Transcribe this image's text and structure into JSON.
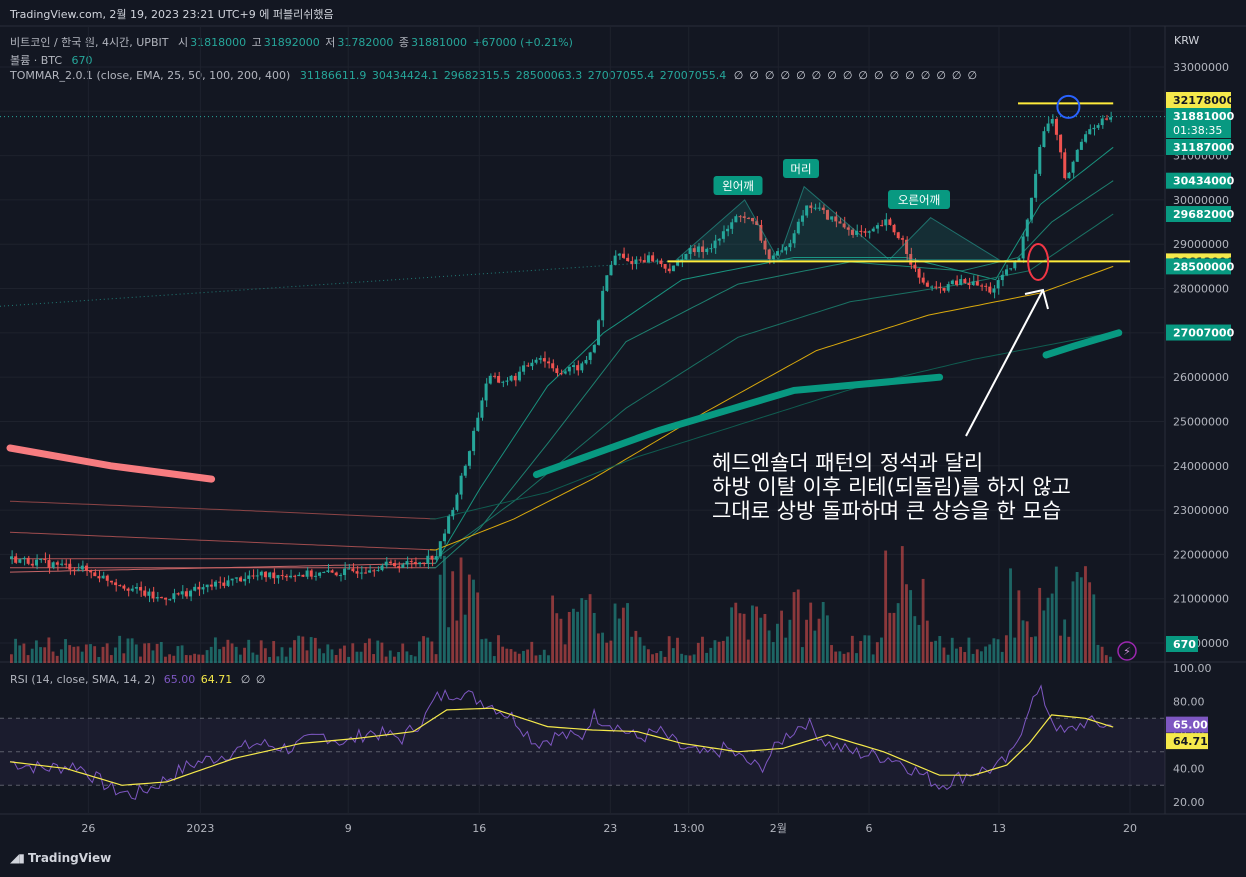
{
  "header": {
    "published": "TradingView.com, 2월 19, 2023 23:21 UTC+9 에 퍼블리쉬했음",
    "symbol": "비트코인 / 한국 원, 4시간, UPBIT",
    "o_label": "시",
    "o": "31818000",
    "h_label": "고",
    "h": "31892000",
    "l_label": "저",
    "l": "31782000",
    "c_label": "종",
    "c": "31881000",
    "change": "+67000 (+0.21%)",
    "volume_label": "볼륨 · BTC",
    "volume_value": "670",
    "indicator_name": "TOMMAR_2.0.1 (close, EMA, 25, 50, 100, 200, 400)",
    "indicator_values": [
      "31186611.9",
      "30434424.1",
      "29682315.5",
      "28500063.3",
      "27007055.4",
      "27007055.4"
    ],
    "null_marker": "∅",
    "currency": "KRW"
  },
  "rsi_header": {
    "name": "RSI (14, close, SMA, 14, 2)",
    "v1": "65.00",
    "v2": "64.71",
    "null1": "∅",
    "null2": "∅"
  },
  "annotations": {
    "left_shoulder": "왼어깨",
    "head": "머리",
    "right_shoulder": "오른어깨",
    "comment": [
      "헤드엔숄더 패턴의 정석과 달리",
      "하방 이탈 이후 리테(되돌림)를 하지 않고",
      "그대로 상방 돌파하며 큰 상승을 한 모습"
    ]
  },
  "price_tags": [
    {
      "label": "32178000",
      "value": 32178000,
      "bg": "#f5e94b",
      "fg": "#131722"
    },
    {
      "label": "31881000",
      "value": 31881000,
      "bg": "#089981",
      "fg": "#ffffff",
      "sub": "01:38:35"
    },
    {
      "label": "31187000",
      "value": 31187000,
      "bg": "#089981",
      "fg": "#ffffff"
    },
    {
      "label": "30434000",
      "value": 30434000,
      "bg": "#089981",
      "fg": "#ffffff"
    },
    {
      "label": "29682000",
      "value": 29682000,
      "bg": "#089981",
      "fg": "#ffffff"
    },
    {
      "label": "28613000",
      "value": 28613000,
      "bg": "#f5e94b",
      "fg": "#131722"
    },
    {
      "label": "28500000",
      "value": 28500000,
      "bg": "#089981",
      "fg": "#ffffff"
    },
    {
      "label": "27007000",
      "value": 27007000,
      "bg": "#089981",
      "fg": "#ffffff"
    }
  ],
  "volume_tag": "670",
  "rsi_tags": [
    {
      "label": "65.00",
      "value": 65.0,
      "bg": "#7e57c2",
      "fg": "#ffffff"
    },
    {
      "label": "64.71",
      "value": 64.71,
      "bg": "#f5e94b",
      "fg": "#131722"
    }
  ],
  "footer_logo": "TradingView",
  "colors": {
    "background": "#131722",
    "up": "#26a69a",
    "down": "#ef5350",
    "ema_short": "#1f9e8a",
    "ema_long": "#f0b90b",
    "rsi": "#7e57c2",
    "rsi_ma": "#f5e94b",
    "yellow_line": "#ffeb3b",
    "thick_green": "#089981",
    "thick_red": "#f77c80"
  },
  "chart_data": {
    "type": "candlestick",
    "title": "비트코인 / 한국 원, 4시간, UPBIT",
    "y_axis": {
      "ticks": [
        33000000,
        32000000,
        31000000,
        30000000,
        29000000,
        28000000,
        27000000,
        26000000,
        25000000,
        24000000,
        23000000,
        22000000,
        21000000,
        20000000
      ],
      "tick_labels": [
        "33000000",
        "32000000",
        "31000000",
        "30000000",
        "29000000",
        "28000000",
        "27000000",
        "26000000",
        "25000000",
        "24000000",
        "23000000",
        "22000000",
        "21000000",
        "20000000"
      ]
    },
    "x_axis": {
      "tick_labels": [
        "26",
        "2023",
        "9",
        "16",
        "23",
        "13:00",
        "2월",
        "6",
        "13",
        "20"
      ]
    },
    "price_path": [
      [
        0,
        21900000
      ],
      [
        3,
        21800000
      ],
      [
        6,
        21700000
      ],
      [
        9,
        21400000
      ],
      [
        11,
        21200000
      ],
      [
        13,
        21000000
      ],
      [
        15,
        21100000
      ],
      [
        18,
        21300000
      ],
      [
        21,
        21500000
      ],
      [
        24,
        21550000
      ],
      [
        27,
        21550000
      ],
      [
        30,
        21600000
      ],
      [
        33,
        21750000
      ],
      [
        36,
        21800000
      ],
      [
        38,
        22000000
      ],
      [
        39.3,
        23000000
      ],
      [
        40.5,
        24000000
      ],
      [
        42.5,
        26000000
      ],
      [
        43.5,
        25900000
      ],
      [
        45,
        26000000
      ],
      [
        47,
        26500000
      ],
      [
        49,
        26100000
      ],
      [
        51,
        26250000
      ],
      [
        52,
        26700000
      ],
      [
        53,
        28200000
      ],
      [
        54,
        28800000
      ],
      [
        55,
        28600000
      ],
      [
        57,
        28700000
      ],
      [
        59,
        28400000
      ],
      [
        60,
        28800000
      ],
      [
        62,
        28900000
      ],
      [
        63.5,
        29200000
      ],
      [
        65,
        29700000
      ],
      [
        66.5,
        29400000
      ],
      [
        67.5,
        28700000
      ],
      [
        69,
        28800000
      ],
      [
        70.5,
        29700000
      ],
      [
        71.5,
        29900000
      ],
      [
        73,
        29600000
      ],
      [
        75,
        29300000
      ],
      [
        76.5,
        29200000
      ],
      [
        78,
        29500000
      ],
      [
        79.5,
        29100000
      ],
      [
        81,
        28200000
      ],
      [
        82.5,
        27950000
      ],
      [
        84.5,
        28150000
      ],
      [
        86,
        28100000
      ],
      [
        87.5,
        27950000
      ],
      [
        89,
        28400000
      ],
      [
        90,
        28700000
      ],
      [
        91,
        30000000
      ],
      [
        92,
        31500000
      ],
      [
        93,
        31850000
      ],
      [
        93.7,
        31000000
      ],
      [
        94,
        30400000
      ],
      [
        95,
        31000000
      ],
      [
        96,
        31600000
      ],
      [
        97,
        31750000
      ],
      [
        98.5,
        31880000
      ]
    ],
    "emas": [
      {
        "name": "EMA 25",
        "points": [
          [
            0,
            21600000
          ],
          [
            38,
            21800000
          ],
          [
            42,
            23500000
          ],
          [
            48,
            25800000
          ],
          [
            53,
            27000000
          ],
          [
            60,
            28200000
          ],
          [
            70,
            28700000
          ],
          [
            80,
            28700000
          ],
          [
            88,
            28200000
          ],
          [
            92,
            29900000
          ],
          [
            98.5,
            31187000
          ]
        ]
      },
      {
        "name": "EMA 50",
        "points": [
          [
            0,
            21700000
          ],
          [
            38,
            21700000
          ],
          [
            42,
            22600000
          ],
          [
            48,
            24500000
          ],
          [
            55,
            26800000
          ],
          [
            65,
            28100000
          ],
          [
            75,
            28600000
          ],
          [
            85,
            28400000
          ],
          [
            90,
            28700000
          ],
          [
            93,
            29500000
          ],
          [
            98.5,
            30434000
          ]
        ]
      },
      {
        "name": "EMA 100",
        "points": [
          [
            0,
            21900000
          ],
          [
            38,
            21900000
          ],
          [
            45,
            23200000
          ],
          [
            55,
            25300000
          ],
          [
            65,
            26900000
          ],
          [
            75,
            27700000
          ],
          [
            85,
            28100000
          ],
          [
            91,
            28400000
          ],
          [
            98.5,
            29682000
          ]
        ]
      },
      {
        "name": "EMA 200",
        "points": [
          [
            0,
            22500000
          ],
          [
            38,
            22100000
          ],
          [
            45,
            22800000
          ],
          [
            52,
            23700000
          ],
          [
            62,
            25200000
          ],
          [
            72,
            26600000
          ],
          [
            82,
            27400000
          ],
          [
            92,
            27900000
          ],
          [
            98.5,
            28500000
          ]
        ]
      },
      {
        "name": "EMA 400",
        "points": [
          [
            0,
            23200000
          ],
          [
            20,
            23000000
          ],
          [
            38,
            22800000
          ],
          [
            48,
            23400000
          ],
          [
            56,
            24200000
          ],
          [
            66,
            25000000
          ],
          [
            76,
            25800000
          ],
          [
            86,
            26400000
          ],
          [
            98.5,
            27007000
          ]
        ]
      }
    ],
    "horizontal_lines": [
      {
        "value": 32178000,
        "x_start": 90,
        "x_end": 98.5
      },
      {
        "value": 28613000,
        "x_start": 58.7,
        "x_end": 100
      }
    ],
    "rsi": {
      "ticks": [
        100,
        80,
        60,
        40,
        20
      ],
      "tick_labels": [
        "100.00",
        "80.00",
        "60.00",
        "40.00",
        "20.00"
      ],
      "bands": [
        70,
        50,
        30
      ],
      "rsi_path": [
        [
          0,
          44
        ],
        [
          3,
          40
        ],
        [
          6,
          42
        ],
        [
          9,
          28
        ],
        [
          11,
          24
        ],
        [
          13,
          30
        ],
        [
          16,
          42
        ],
        [
          19,
          48
        ],
        [
          22,
          55
        ],
        [
          25,
          52
        ],
        [
          28,
          60
        ],
        [
          30,
          55
        ],
        [
          32,
          62
        ],
        [
          35,
          58
        ],
        [
          37,
          70
        ],
        [
          38,
          82
        ],
        [
          40,
          86
        ],
        [
          43,
          78
        ],
        [
          45,
          70
        ],
        [
          47,
          55
        ],
        [
          49,
          60
        ],
        [
          51,
          58
        ],
        [
          52,
          72
        ],
        [
          54,
          66
        ],
        [
          56,
          58
        ],
        [
          58,
          62
        ],
        [
          60,
          52
        ],
        [
          62,
          48
        ],
        [
          64,
          52
        ],
        [
          65.5,
          45
        ],
        [
          67,
          40
        ],
        [
          69,
          58
        ],
        [
          71,
          68
        ],
        [
          73,
          55
        ],
        [
          75,
          50
        ],
        [
          77,
          48
        ],
        [
          79,
          46
        ],
        [
          81,
          38
        ],
        [
          83,
          30
        ],
        [
          84.5,
          34
        ],
        [
          86,
          38
        ],
        [
          88,
          40
        ],
        [
          89.5,
          48
        ],
        [
          91,
          78
        ],
        [
          92,
          86
        ],
        [
          93,
          70
        ],
        [
          94,
          60
        ],
        [
          96,
          68
        ],
        [
          98.5,
          65
        ]
      ],
      "ma_path": [
        [
          0,
          44
        ],
        [
          5,
          40
        ],
        [
          10,
          30
        ],
        [
          14,
          32
        ],
        [
          20,
          46
        ],
        [
          26,
          55
        ],
        [
          31,
          58
        ],
        [
          36,
          62
        ],
        [
          39,
          75
        ],
        [
          43,
          76
        ],
        [
          48,
          65
        ],
        [
          52,
          63
        ],
        [
          56,
          62
        ],
        [
          60,
          55
        ],
        [
          65,
          50
        ],
        [
          69,
          52
        ],
        [
          73,
          60
        ],
        [
          78,
          50
        ],
        [
          83,
          36
        ],
        [
          86,
          36
        ],
        [
          89,
          42
        ],
        [
          91,
          55
        ],
        [
          93,
          72
        ],
        [
          96,
          70
        ],
        [
          98.5,
          64.7
        ]
      ]
    }
  }
}
